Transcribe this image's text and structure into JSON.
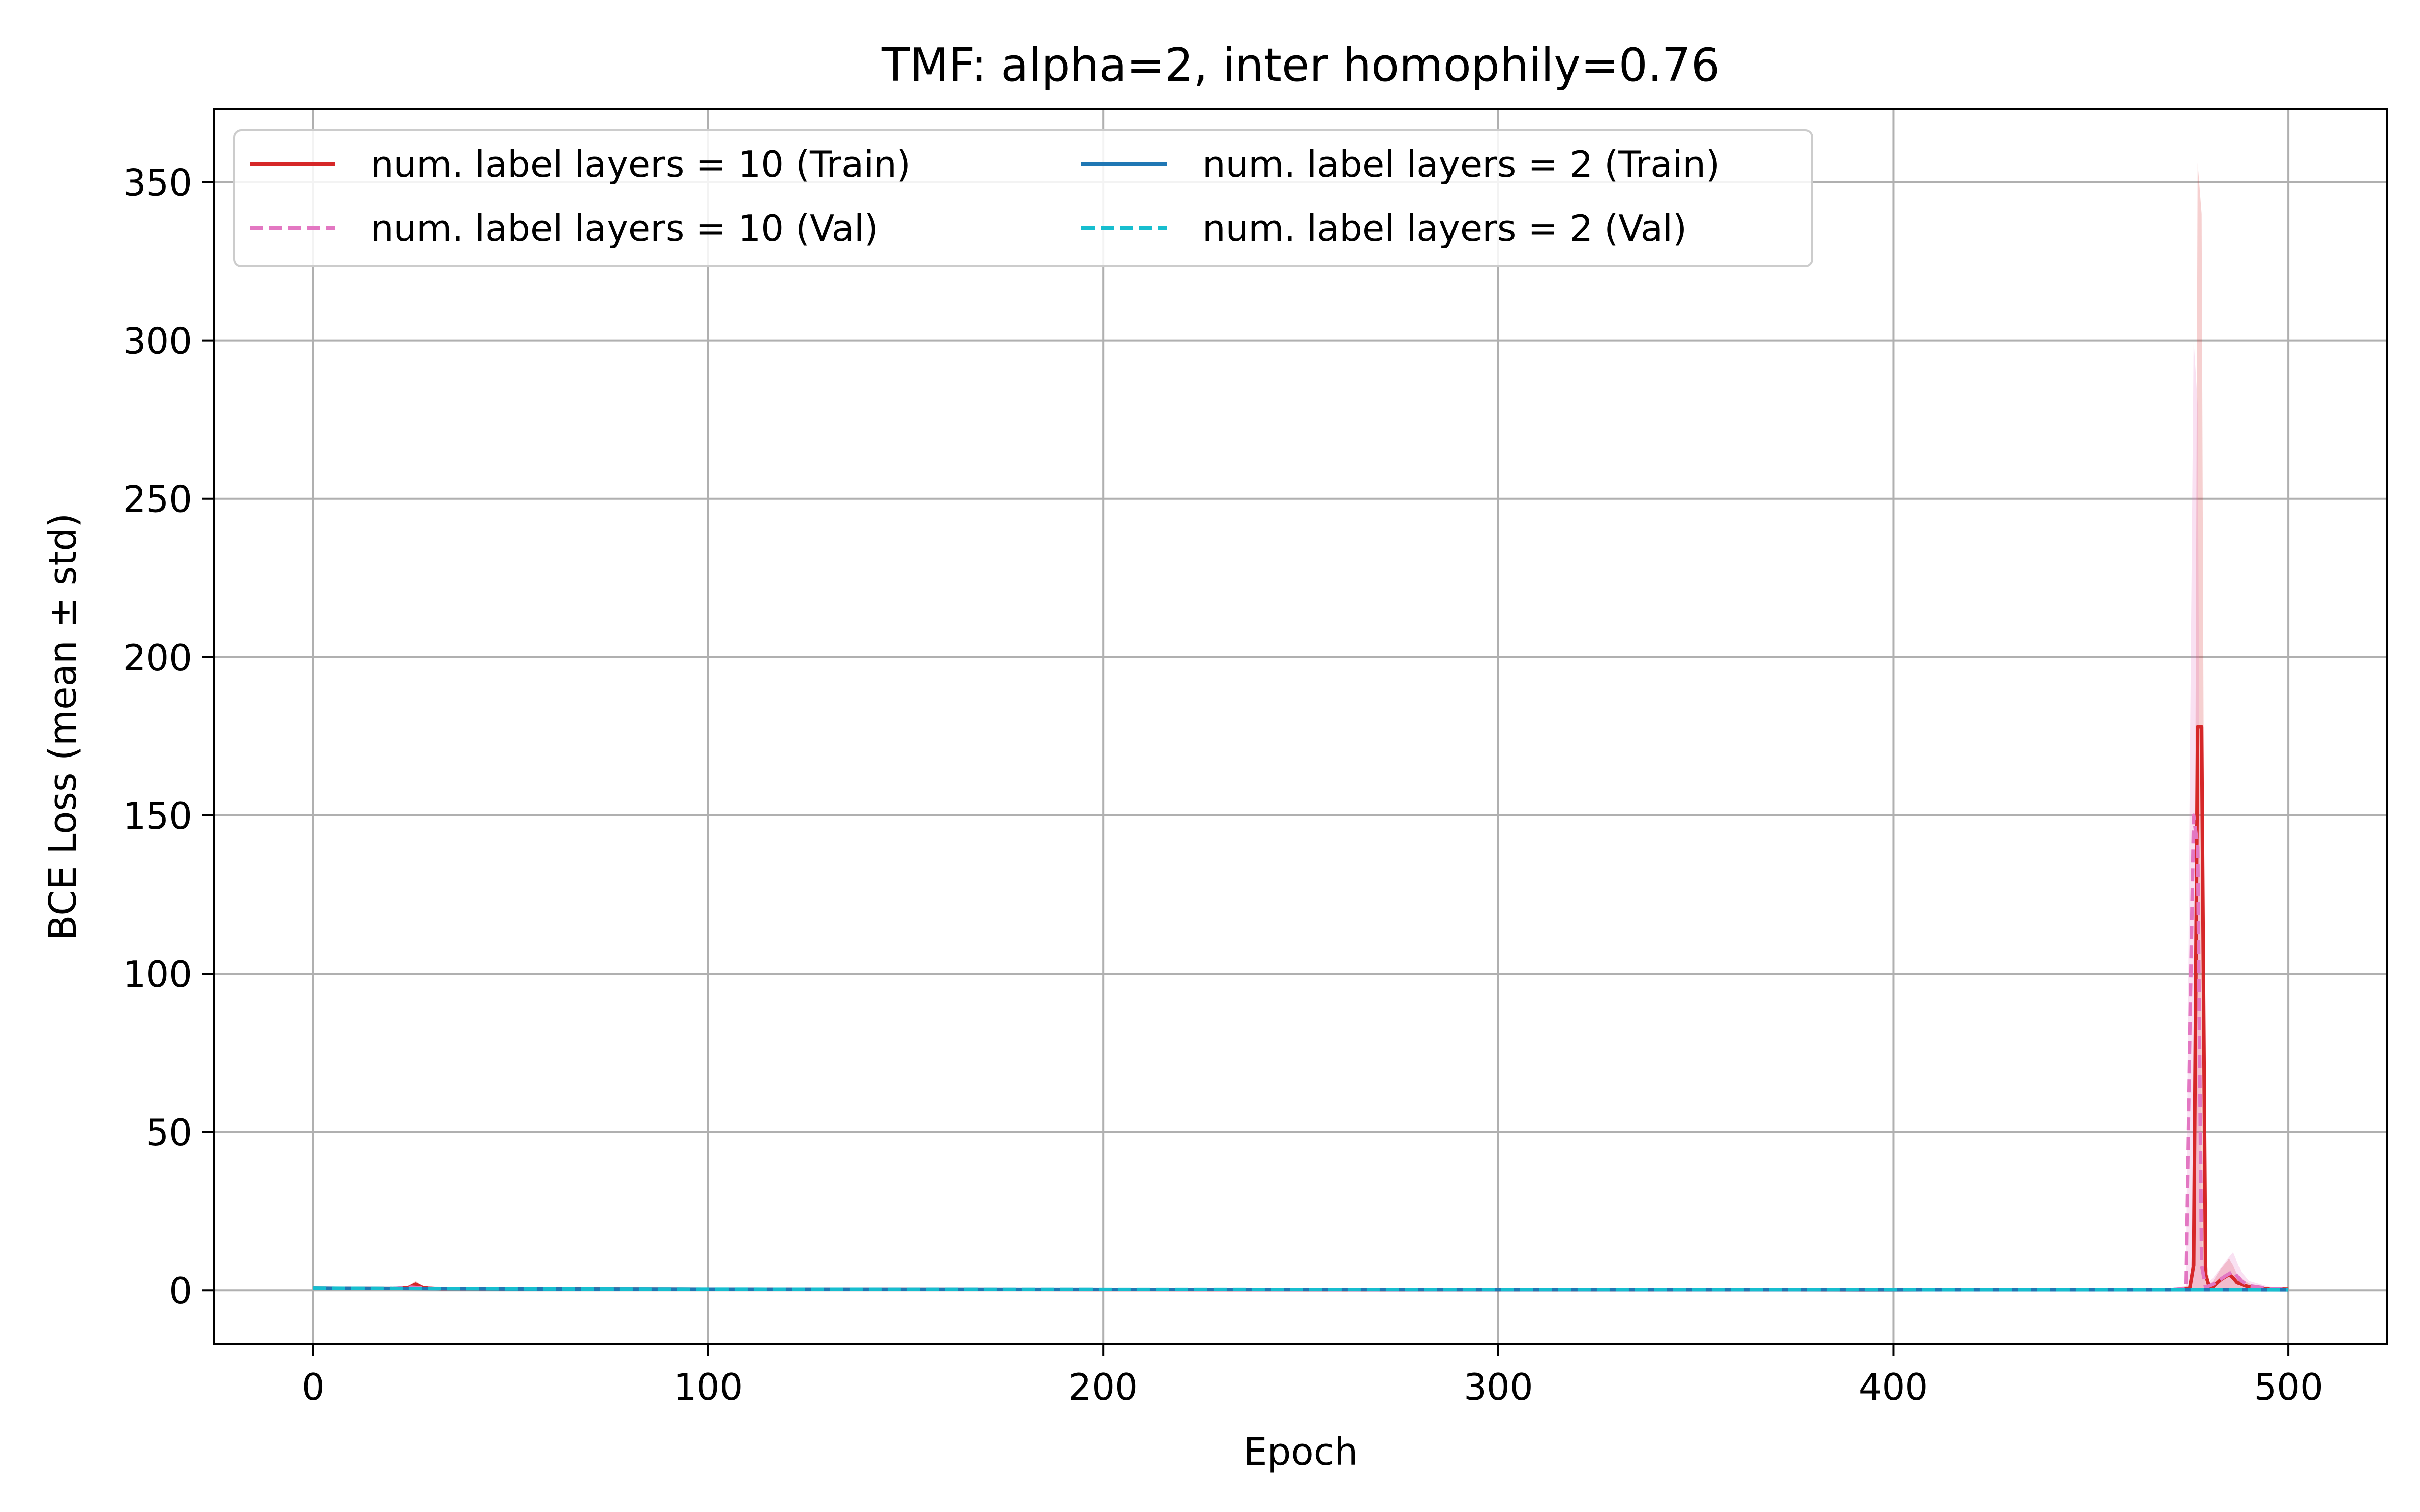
{
  "chart_data": {
    "type": "line",
    "title": "TMF: alpha=2, inter homophily=0.76",
    "xlabel": "Epoch",
    "ylabel": "BCE Loss (mean ± std)",
    "xlim": [
      -25,
      525
    ],
    "ylim": [
      -17,
      373
    ],
    "xticks": [
      0,
      100,
      200,
      300,
      400,
      500
    ],
    "yticks": [
      0,
      50,
      100,
      150,
      200,
      250,
      300,
      350
    ],
    "grid": true,
    "legend_position": "top-left",
    "legend_columns": 2,
    "series": [
      {
        "name": "num. label layers = 10 (Train)",
        "color": "#d62728",
        "style": "solid",
        "x": [
          0,
          20,
          24,
          26,
          28,
          32,
          100,
          200,
          300,
          400,
          470,
          475,
          476,
          477,
          478,
          479,
          480,
          481,
          483,
          485,
          486,
          487,
          489,
          491,
          495,
          500
        ],
        "y": [
          0.7,
          0.6,
          0.8,
          2.0,
          0.8,
          0.5,
          0.35,
          0.25,
          0.2,
          0.18,
          0.2,
          0.6,
          8,
          178,
          178,
          5,
          0.8,
          1.2,
          3.5,
          5.0,
          4.0,
          2.5,
          1.5,
          0.8,
          0.5,
          0.4
        ],
        "std_upper": [
          0.9,
          0.8,
          1.2,
          3.0,
          1.2,
          0.7,
          0.5,
          0.4,
          0.3,
          0.3,
          0.4,
          1.5,
          20,
          356,
          340,
          12,
          2.0,
          3.0,
          7.0,
          10.0,
          8.0,
          5.0,
          3.0,
          1.5,
          0.9,
          0.7
        ],
        "std_lower": [
          0.5,
          0.4,
          0.4,
          1.0,
          0.4,
          0.3,
          0.2,
          0.1,
          0.1,
          0.06,
          0.0,
          0.0,
          0.0,
          0.0,
          0.0,
          0.0,
          0.0,
          0.0,
          0.0,
          0.0,
          0.0,
          0.0,
          0.0,
          0.1,
          0.2,
          0.1
        ]
      },
      {
        "name": "num. label layers = 10 (Val)",
        "color": "#e377c2",
        "style": "dashed",
        "x": [
          0,
          20,
          25,
          30,
          100,
          200,
          300,
          400,
          470,
          474,
          475,
          476,
          477,
          478,
          479,
          481,
          484,
          486,
          488,
          490,
          495,
          500
        ],
        "y": [
          0.7,
          0.6,
          1.0,
          0.6,
          0.35,
          0.25,
          0.2,
          0.18,
          0.2,
          0.6,
          80,
          150,
          140,
          8,
          1.0,
          2.0,
          4.5,
          6.0,
          3.0,
          1.5,
          0.6,
          0.4
        ],
        "std_upper": [
          0.9,
          0.8,
          1.5,
          0.9,
          0.5,
          0.4,
          0.3,
          0.3,
          0.4,
          1.5,
          160,
          300,
          280,
          16,
          2.0,
          4.0,
          9.0,
          12.0,
          6.0,
          3.0,
          1.2,
          0.8
        ],
        "std_lower": [
          0.5,
          0.4,
          0.5,
          0.3,
          0.2,
          0.1,
          0.1,
          0.06,
          0.0,
          0.0,
          0.0,
          0.0,
          0.0,
          0.0,
          0.0,
          0.0,
          0.0,
          0.0,
          0.0,
          0.0,
          0.0,
          0.0
        ]
      },
      {
        "name": "num. label layers = 2 (Train)",
        "color": "#1f77b4",
        "style": "solid",
        "x": [
          0,
          50,
          100,
          200,
          300,
          400,
          500
        ],
        "y": [
          0.7,
          0.45,
          0.35,
          0.28,
          0.22,
          0.2,
          0.18
        ]
      },
      {
        "name": "num. label layers = 2 (Val)",
        "color": "#17becf",
        "style": "dashed",
        "x": [
          0,
          50,
          100,
          200,
          300,
          400,
          500
        ],
        "y": [
          0.72,
          0.47,
          0.37,
          0.3,
          0.25,
          0.22,
          0.2
        ]
      }
    ]
  }
}
